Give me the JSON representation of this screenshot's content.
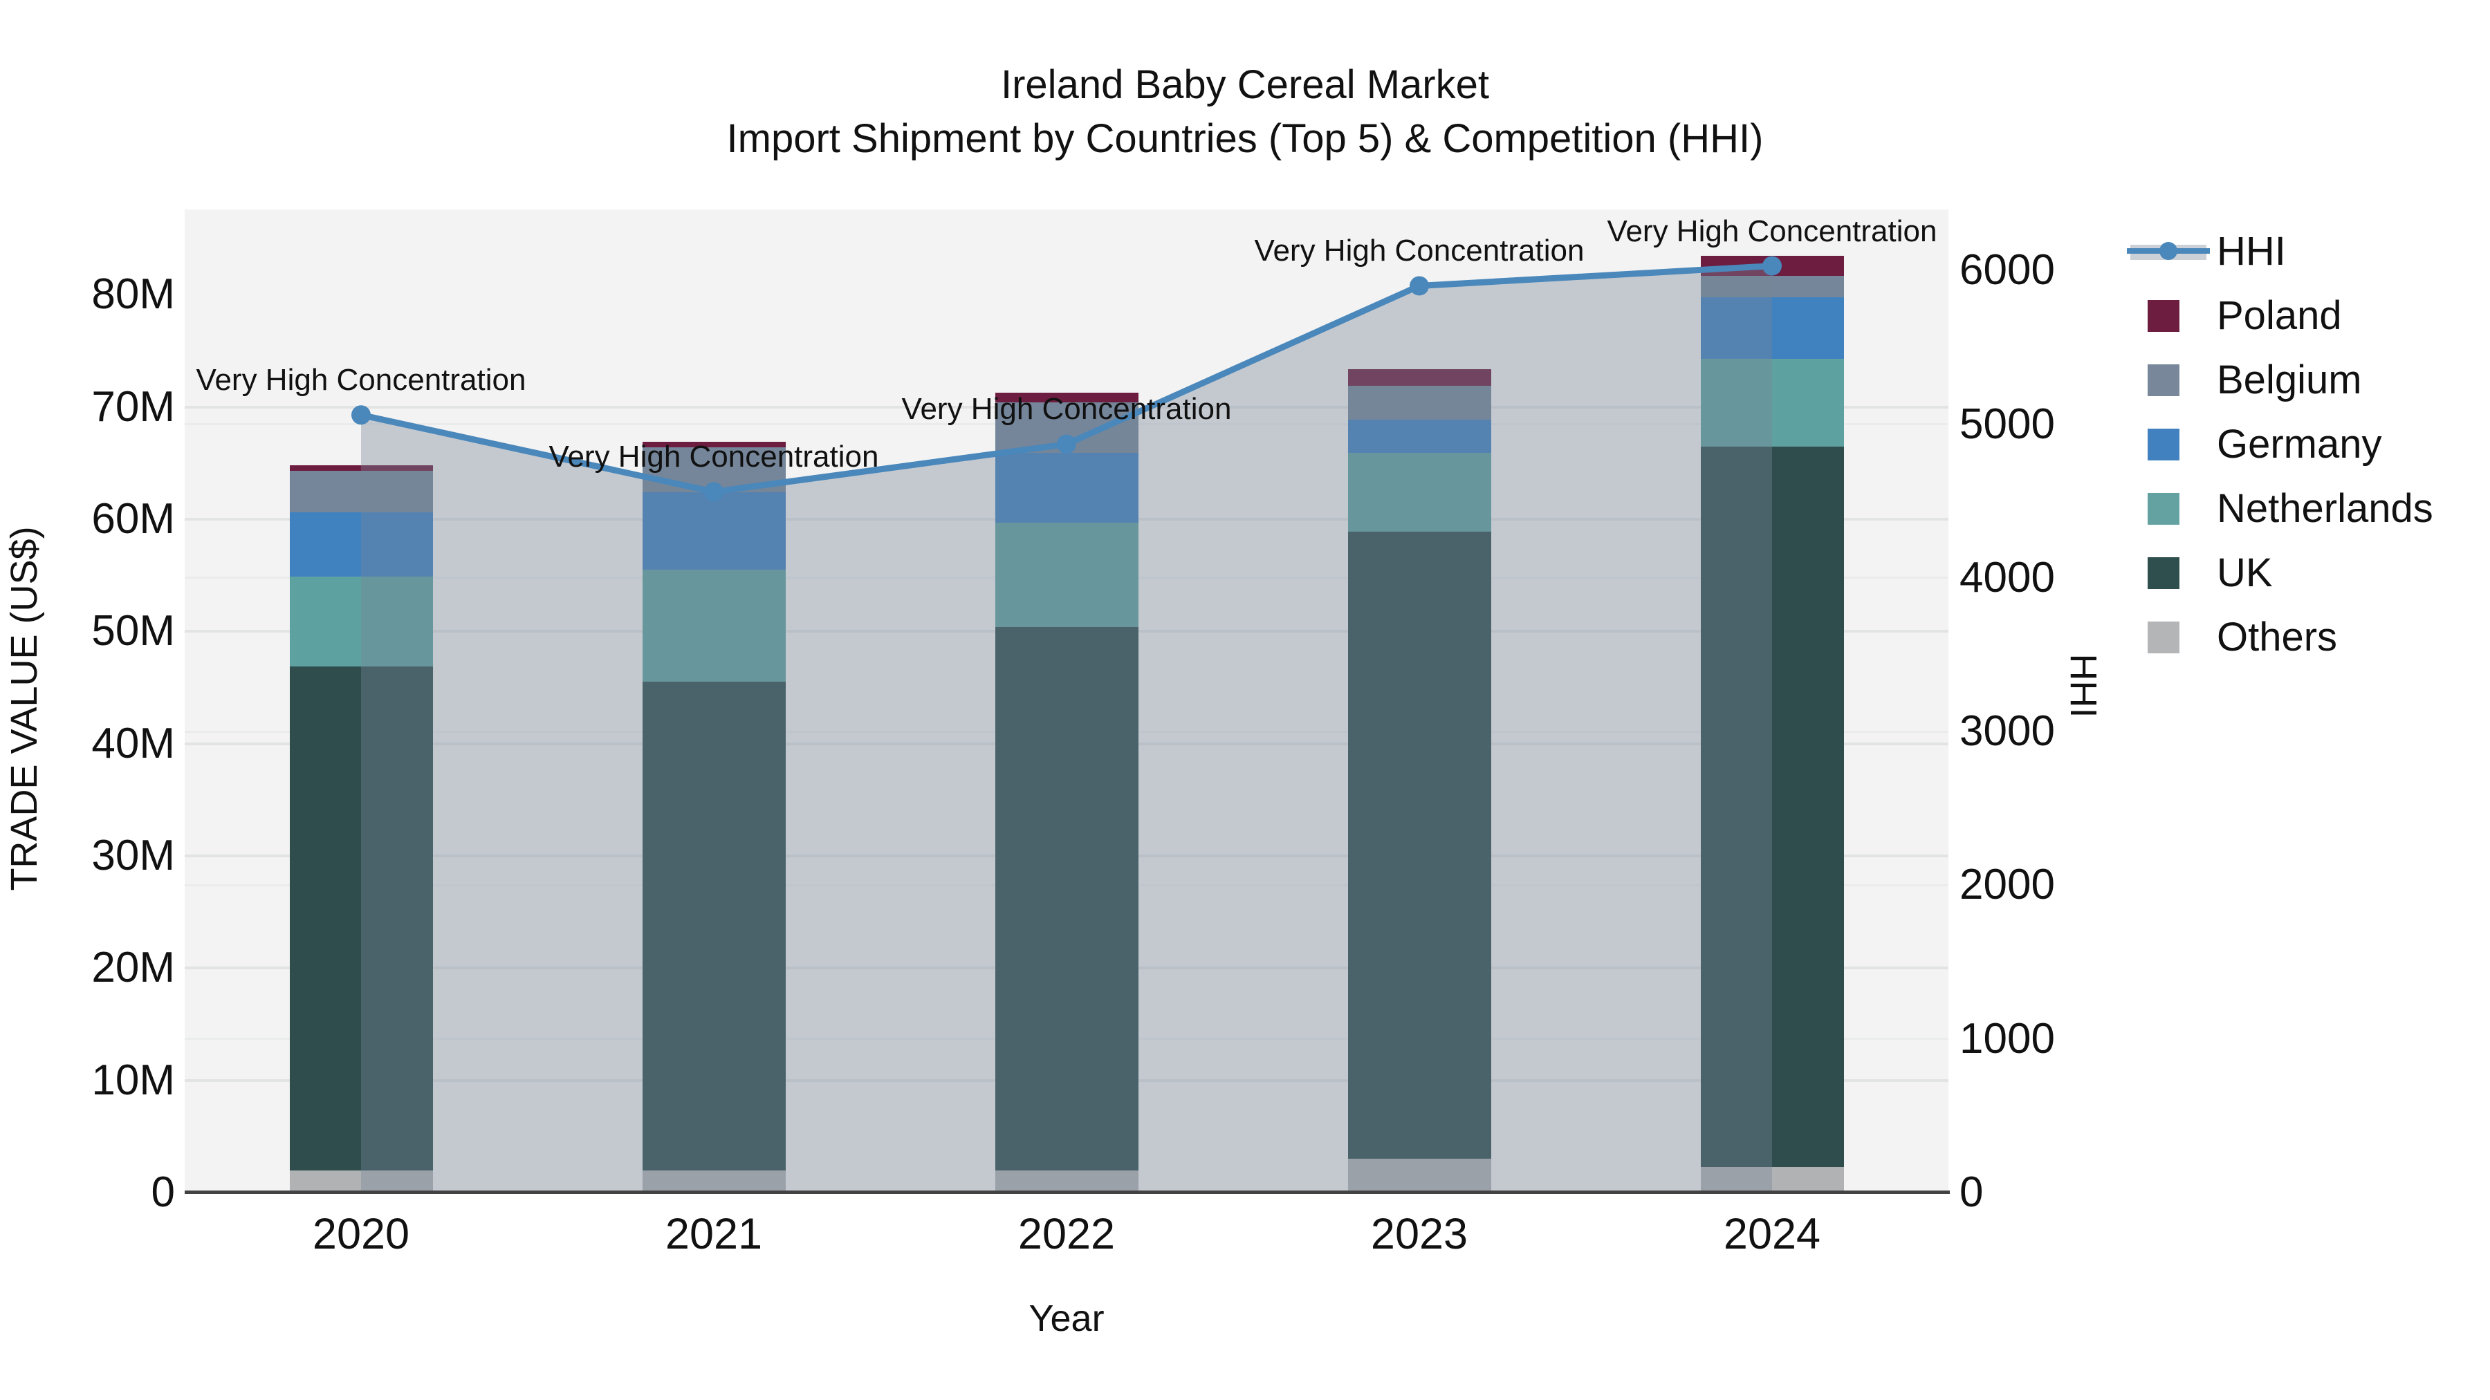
{
  "title": {
    "line1": "Ireland Baby Cereal Market",
    "line2": "Import Shipment by Countries (Top 5) & Competition (HHI)"
  },
  "axes": {
    "x_label": "Year",
    "y_left_label": "TRADE VALUE (US$)",
    "y_right_label": "HHI",
    "y_left_ticks": [
      "0",
      "10M",
      "20M",
      "30M",
      "40M",
      "50M",
      "60M",
      "70M",
      "80M"
    ],
    "y_right_ticks": [
      "0",
      "1000",
      "2000",
      "3000",
      "4000",
      "5000",
      "6000"
    ]
  },
  "chart_data": {
    "type": "combo-stacked-bar-line",
    "title": "Ireland Baby Cereal Market Import Shipment by Countries (Top 5) & Competition (HHI)",
    "categories": [
      "2020",
      "2021",
      "2022",
      "2023",
      "2024"
    ],
    "bar_unit": "million US$",
    "stack_order_bottom_to_top": [
      "Others",
      "UK",
      "Netherlands",
      "Germany",
      "Belgium",
      "Poland"
    ],
    "series": [
      {
        "name": "Poland",
        "color": "#6d1d40",
        "values": [
          0.5,
          0.5,
          0.9,
          1.5,
          1.8
        ]
      },
      {
        "name": "Belgium",
        "color": "#75869a",
        "values": [
          3.7,
          4.0,
          4.5,
          3.0,
          1.9
        ]
      },
      {
        "name": "Germany",
        "color": "#4082c0",
        "values": [
          5.7,
          6.9,
          6.2,
          3.0,
          5.5
        ]
      },
      {
        "name": "Netherlands",
        "color": "#5ea1a1",
        "values": [
          8.0,
          10.0,
          9.3,
          7.0,
          7.8
        ]
      },
      {
        "name": "UK",
        "color": "#2e4d4c",
        "values": [
          44.9,
          43.5,
          48.4,
          55.9,
          64.2
        ]
      },
      {
        "name": "Others",
        "color": "#b0b2b4",
        "values": [
          2.0,
          2.0,
          2.0,
          3.0,
          2.3
        ]
      }
    ],
    "bar_totals": [
      64.8,
      66.9,
      71.3,
      73.4,
      83.5
    ],
    "line_series": {
      "name": "HHI",
      "color": "#4a87ba",
      "area_fill_color": "rgba(120,133,153,0.38)",
      "values": [
        5060,
        4560,
        4870,
        5900,
        6030
      ]
    },
    "annotation_text": "Very High Concentration",
    "left_axis": {
      "label": "TRADE VALUE (US$)",
      "min": 0,
      "max": 87.6,
      "tick_step": 10,
      "tick_unit": "M"
    },
    "right_axis": {
      "label": "HHI",
      "min": 0,
      "max": 6397,
      "tick_step": 1000
    },
    "xlabel": "Year",
    "grid": true,
    "legend_position": "right",
    "plot_background": "#f3f3f3"
  },
  "legend": {
    "items": [
      {
        "label": "HHI",
        "type": "line",
        "color": "#4a87ba"
      },
      {
        "label": "Poland",
        "type": "box",
        "color": "#6d1d40"
      },
      {
        "label": "Belgium",
        "type": "box",
        "color": "#78889a"
      },
      {
        "label": "Germany",
        "type": "box",
        "color": "#4181bf"
      },
      {
        "label": "Netherlands",
        "type": "box",
        "color": "#64a2a2"
      },
      {
        "label": "UK",
        "type": "box",
        "color": "#2e4f4e"
      },
      {
        "label": "Others",
        "type": "box",
        "color": "#b3b5b6"
      }
    ]
  }
}
